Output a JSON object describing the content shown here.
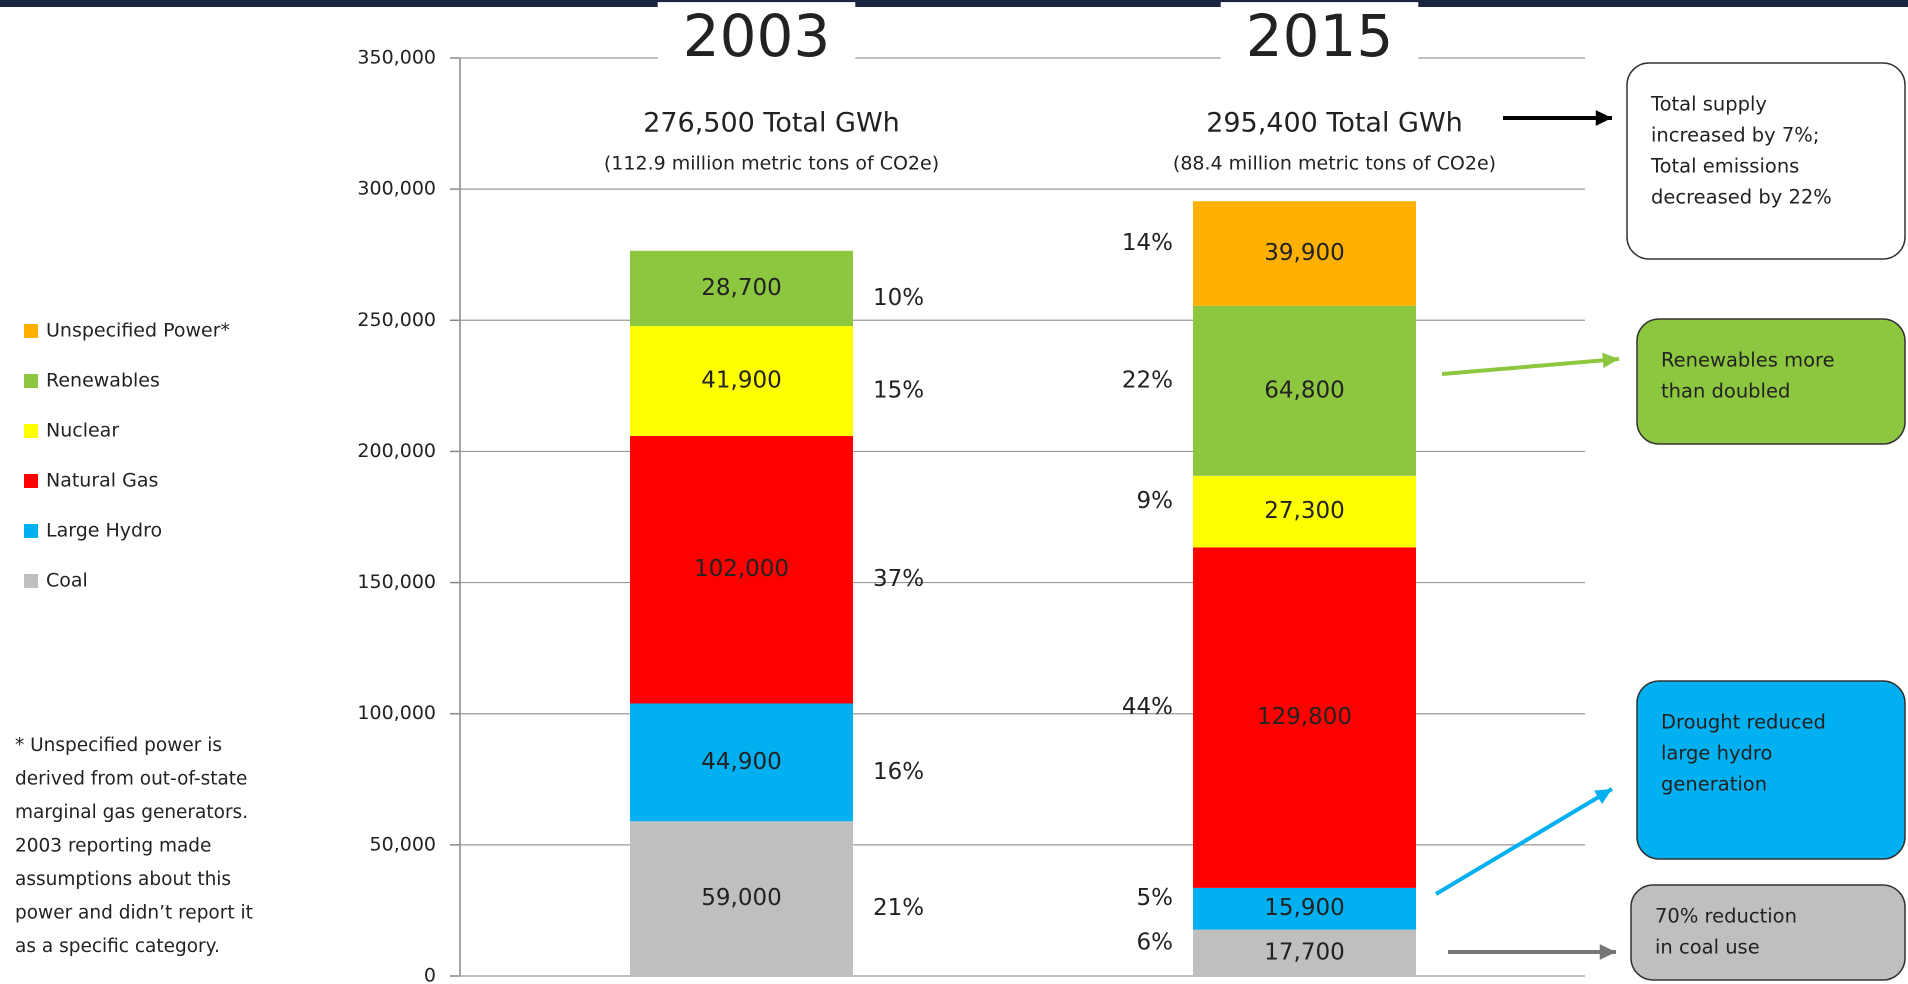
{
  "chart_data": {
    "type": "bar",
    "stacked": true,
    "categories": [
      "2003",
      "2015"
    ],
    "subtitles": [
      [
        "276,500 Total GWh",
        "(112.9  million metric tons of CO2e)"
      ],
      [
        "295,400 Total GWh",
        "(88.4  million metric tons of CO2e)"
      ]
    ],
    "series": [
      {
        "name": "Coal",
        "color": "#bfbfbf",
        "values": [
          59000,
          17700
        ],
        "value_labels": [
          "59,000",
          "17,700"
        ],
        "shares": [
          21,
          6
        ],
        "share_labels": [
          "21%",
          "6%"
        ]
      },
      {
        "name": "Large Hydro",
        "color": "#00b0f0",
        "values": [
          44900,
          15900
        ],
        "value_labels": [
          "44,900",
          "15,900"
        ],
        "shares": [
          16,
          5
        ],
        "share_labels": [
          "16%",
          "5%"
        ]
      },
      {
        "name": "Natural Gas",
        "color": "#ff0000",
        "values": [
          102000,
          129800
        ],
        "value_labels": [
          "102,000",
          "129,800"
        ],
        "shares": [
          37,
          44
        ],
        "share_labels": [
          "37%",
          "44%"
        ]
      },
      {
        "name": "Nuclear",
        "color": "#ffff00",
        "values": [
          41900,
          27300
        ],
        "value_labels": [
          "41,900",
          "27,300"
        ],
        "shares": [
          15,
          9
        ],
        "share_labels": [
          "15%",
          "9%"
        ]
      },
      {
        "name": "Renewables",
        "color": "#8dc63f",
        "values": [
          28700,
          64800
        ],
        "value_labels": [
          "28,700",
          "64,800"
        ],
        "shares": [
          10,
          22
        ],
        "share_labels": [
          "10%",
          "22%"
        ]
      },
      {
        "name": "Unspecified Power*",
        "color": "#ffb000",
        "values": [
          null,
          39900
        ],
        "value_labels": [
          null,
          "39,900"
        ],
        "shares": [
          null,
          14
        ],
        "share_labels": [
          null,
          "14%"
        ]
      }
    ],
    "ylim": [
      0,
      350000
    ],
    "yticks": [
      0,
      {
        "value": 50000,
        "label": "50,000"
      },
      {
        "value": 100000,
        "label": "100,000"
      },
      {
        "value": 150000,
        "label": "150,000"
      },
      {
        "value": 200000,
        "label": "200,000"
      },
      {
        "value": 250000,
        "label": "250,000"
      },
      {
        "value": 300000,
        "label": "300,000"
      },
      {
        "value": 350000,
        "label": "350,000"
      }
    ],
    "grid": true,
    "legend": "left",
    "footnote": [
      "*  Unspecified power is",
      "derived from out-of-state",
      "marginal gas generators.",
      "2003 reporting made",
      "assumptions about this",
      "power and didn’t report it",
      "as a specific category."
    ],
    "annotations": [
      {
        "lines": [
          "Total supply",
          "increased by 7%;",
          "Total emissions",
          "decreased by  22%"
        ],
        "color": "#ffffff"
      },
      {
        "lines": [
          "Renewables more",
          "than doubled"
        ],
        "color": "#8dc63f"
      },
      {
        "lines": [
          "Drought reduced",
          "large hydro",
          "generation"
        ],
        "color": "#00b0f0"
      },
      {
        "lines": [
          "70% reduction",
          "in coal use"
        ],
        "color": "#bfbfbf"
      }
    ]
  }
}
